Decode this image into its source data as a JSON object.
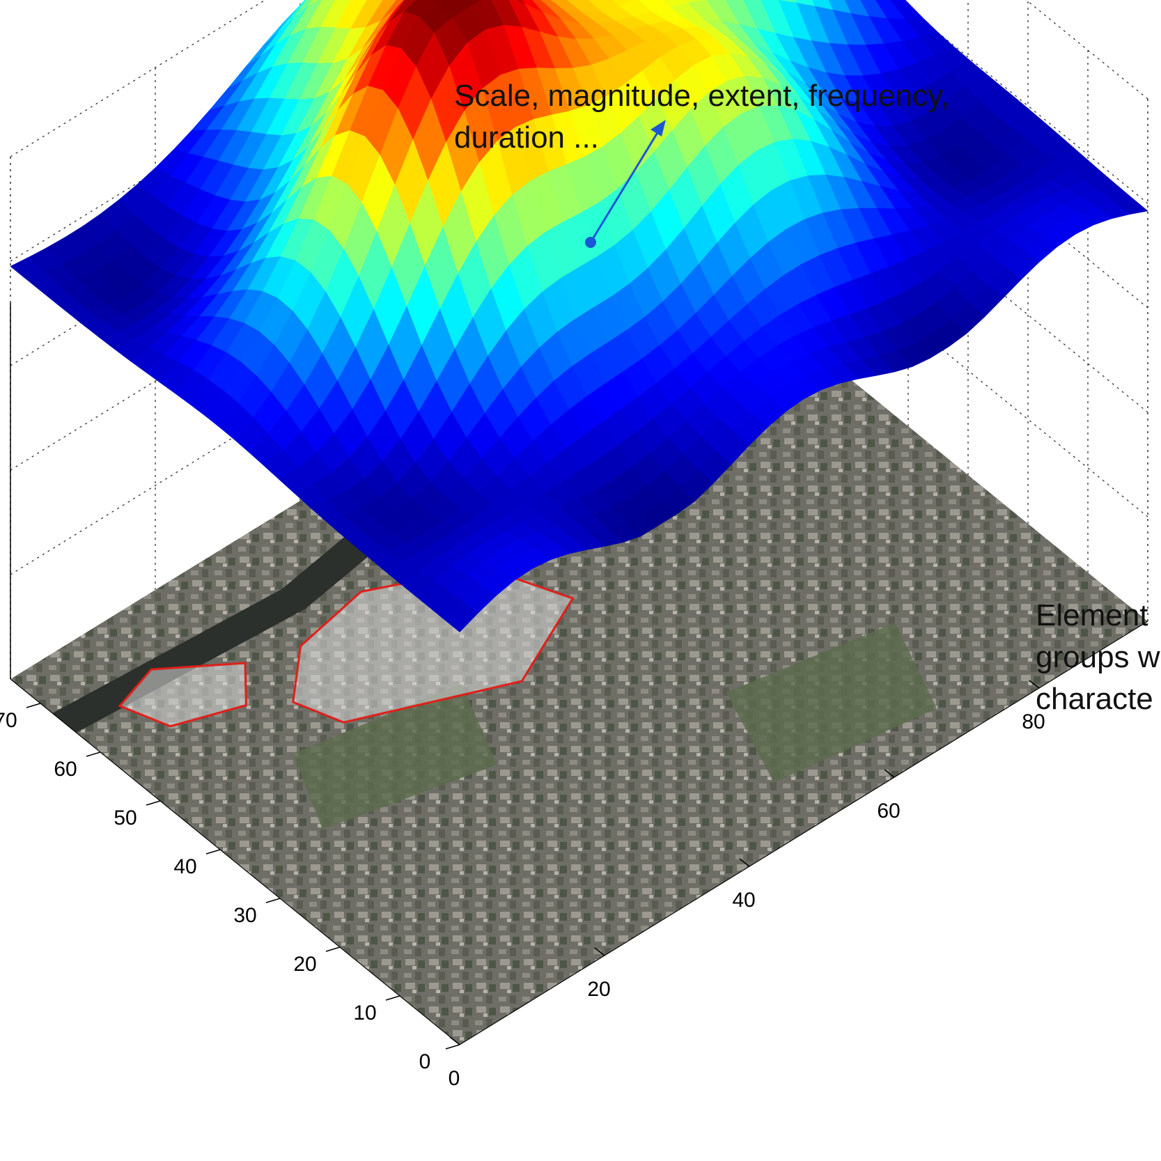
{
  "chart_data": {
    "type": "surface3d",
    "x_ticks": [
      0,
      20,
      40,
      60,
      80
    ],
    "y_ticks": [
      0,
      10,
      20,
      30,
      40,
      50,
      60,
      70
    ],
    "xlim": [
      0,
      95
    ],
    "ylim": [
      0,
      75
    ],
    "grid": true,
    "colormap": "jet",
    "colormap_stops": [
      "#00008f",
      "#0000ff",
      "#0080ff",
      "#00ffff",
      "#80ff80",
      "#ffff00",
      "#ff8000",
      "#ff0000",
      "#800000"
    ],
    "base_layer": "satellite image with red boundaries outlining settlement areas",
    "boundary_color": "#e0201a",
    "surface_peaks": [
      {
        "x": 30,
        "y": 40,
        "z": 1.0
      },
      {
        "x": 70,
        "y": 52,
        "z": 0.95
      },
      {
        "x": 45,
        "y": 62,
        "z": 0.7
      },
      {
        "x": 55,
        "y": 28,
        "z": 0.55
      }
    ],
    "annotations": [
      {
        "lines": [
          "Scale, magnitude, extent, frequency,",
          "duration ..."
        ],
        "arrow_color": "#1a56d6"
      },
      {
        "lines": [
          "Element",
          "groups w",
          "characte"
        ]
      }
    ]
  }
}
